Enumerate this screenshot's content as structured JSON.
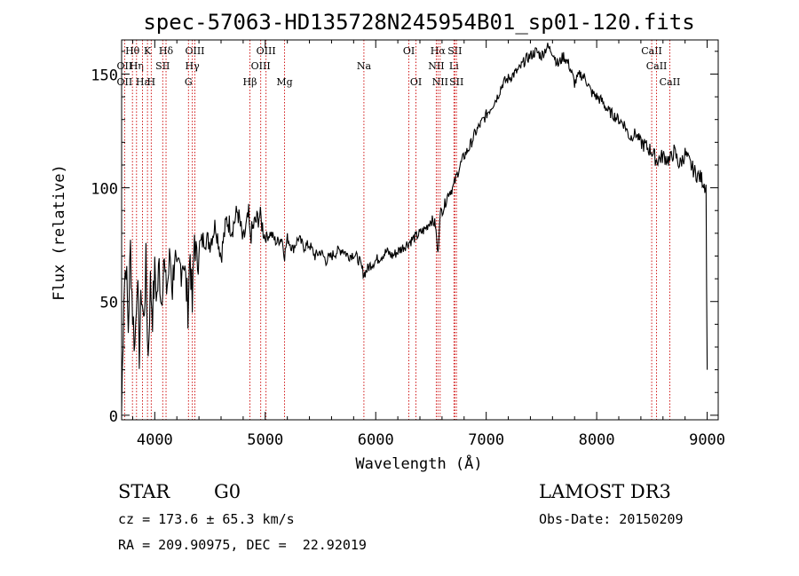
{
  "chart_data": {
    "type": "line",
    "title": "spec-57063-HD135728N245954B01_sp01-120.fits",
    "xlabel": "Wavelength (Å)",
    "ylabel": "Flux (relative)",
    "xlim": [
      3700,
      9100
    ],
    "ylim": [
      -2,
      165
    ],
    "xticks": [
      4000,
      5000,
      6000,
      7000,
      8000,
      9000
    ],
    "xtick_labels": [
      "4000",
      "5000",
      "6000",
      "7000",
      "8000",
      "9000"
    ],
    "yticks": [
      0,
      50,
      100,
      150
    ],
    "ytick_labels": [
      "0",
      "50",
      "100",
      "150"
    ],
    "grid": false,
    "series": [
      {
        "name": "flux",
        "color": "#000000",
        "x": [
          3700,
          3720,
          3740,
          3760,
          3780,
          3800,
          3820,
          3840,
          3860,
          3880,
          3900,
          3920,
          3940,
          3960,
          3980,
          4000,
          4020,
          4040,
          4060,
          4080,
          4100,
          4120,
          4140,
          4160,
          4180,
          4200,
          4220,
          4240,
          4260,
          4280,
          4300,
          4320,
          4340,
          4360,
          4380,
          4400,
          4450,
          4500,
          4550,
          4600,
          4650,
          4700,
          4750,
          4800,
          4850,
          4861,
          4900,
          4950,
          5000,
          5050,
          5100,
          5150,
          5175,
          5200,
          5250,
          5300,
          5350,
          5400,
          5450,
          5500,
          5550,
          5600,
          5650,
          5700,
          5750,
          5800,
          5850,
          5893,
          5950,
          6000,
          6050,
          6100,
          6150,
          6200,
          6250,
          6300,
          6350,
          6400,
          6450,
          6500,
          6540,
          6563,
          6580,
          6620,
          6660,
          6700,
          6750,
          6800,
          6850,
          6900,
          6950,
          7000,
          7050,
          7100,
          7150,
          7200,
          7250,
          7300,
          7350,
          7400,
          7450,
          7500,
          7550,
          7600,
          7650,
          7700,
          7750,
          7800,
          7850,
          7900,
          7950,
          8000,
          8050,
          8100,
          8150,
          8200,
          8250,
          8300,
          8350,
          8400,
          8450,
          8500,
          8542,
          8600,
          8662,
          8700,
          8750,
          8800,
          8850,
          8900,
          8950,
          8990,
          9000
        ],
        "y": [
          2,
          55,
          68,
          38,
          74,
          45,
          30,
          62,
          28,
          55,
          40,
          66,
          25,
          58,
          45,
          62,
          52,
          66,
          50,
          70,
          55,
          60,
          70,
          56,
          72,
          58,
          64,
          66,
          70,
          58,
          48,
          72,
          46,
          80,
          66,
          74,
          78,
          76,
          84,
          70,
          86,
          82,
          90,
          76,
          88,
          78,
          84,
          88,
          78,
          80,
          76,
          78,
          70,
          78,
          73,
          78,
          74,
          75,
          70,
          72,
          68,
          70,
          72,
          73,
          70,
          71,
          68,
          62,
          66,
          68,
          70,
          72,
          70,
          72,
          74,
          76,
          78,
          80,
          82,
          86,
          84,
          70,
          88,
          92,
          98,
          100,
          108,
          114,
          118,
          124,
          128,
          132,
          136,
          140,
          146,
          148,
          150,
          152,
          156,
          158,
          160,
          158,
          162,
          160,
          154,
          158,
          154,
          146,
          150,
          148,
          142,
          140,
          138,
          134,
          132,
          130,
          128,
          122,
          124,
          120,
          118,
          116,
          112,
          114,
          112,
          116,
          110,
          115,
          110,
          106,
          104,
          100,
          20
        ]
      }
    ],
    "lines": [
      {
        "label": "Hθ",
        "wavelength": 3798,
        "row": 0
      },
      {
        "label": "OII",
        "wavelength": 3727,
        "row": 1
      },
      {
        "label": "OII",
        "wavelength": 3727,
        "row": 2
      },
      {
        "label": "Hη",
        "wavelength": 3835,
        "row": 1
      },
      {
        "label": "Hε",
        "wavelength": 3889,
        "row": 2
      },
      {
        "label": "K",
        "wavelength": 3934,
        "row": 0
      },
      {
        "label": "H",
        "wavelength": 3968,
        "row": 2
      },
      {
        "label": "SII",
        "wavelength": 4072,
        "row": 1
      },
      {
        "label": "Hδ",
        "wavelength": 4102,
        "row": 0
      },
      {
        "label": "OIII",
        "wavelength": 4363,
        "row": 0
      },
      {
        "label": "Hγ",
        "wavelength": 4340,
        "row": 1
      },
      {
        "label": "G",
        "wavelength": 4305,
        "row": 2
      },
      {
        "label": "Hβ",
        "wavelength": 4861,
        "row": 2
      },
      {
        "label": "OIII",
        "wavelength": 4959,
        "row": 1
      },
      {
        "label": "OIII",
        "wavelength": 5007,
        "row": 0
      },
      {
        "label": "Mg",
        "wavelength": 5175,
        "row": 2
      },
      {
        "label": "Na",
        "wavelength": 5893,
        "row": 1
      },
      {
        "label": "OI",
        "wavelength": 6300,
        "row": 0
      },
      {
        "label": "OI",
        "wavelength": 6364,
        "row": 2
      },
      {
        "label": "Hα",
        "wavelength": 6563,
        "row": 0
      },
      {
        "label": "NII",
        "wavelength": 6548,
        "row": 1
      },
      {
        "label": "NII",
        "wavelength": 6583,
        "row": 2
      },
      {
        "label": "SII",
        "wavelength": 6716,
        "row": 0
      },
      {
        "label": "Li",
        "wavelength": 6708,
        "row": 1
      },
      {
        "label": "SII",
        "wavelength": 6731,
        "row": 2
      },
      {
        "label": "CaII",
        "wavelength": 8498,
        "row": 0
      },
      {
        "label": "CaII",
        "wavelength": 8542,
        "row": 1
      },
      {
        "label": "CaII",
        "wavelength": 8662,
        "row": 2
      }
    ]
  },
  "info": {
    "object_type": "STAR",
    "subclass": "G0",
    "survey": "LAMOST DR3",
    "redshift": "cz = 173.6 ± 65.3 km/s",
    "obs_date": "Obs-Date: 20150209",
    "coords": "RA = 209.90975, DEC =  22.92019"
  },
  "colors": {
    "line": "#000000",
    "marker": "#cc0000"
  }
}
